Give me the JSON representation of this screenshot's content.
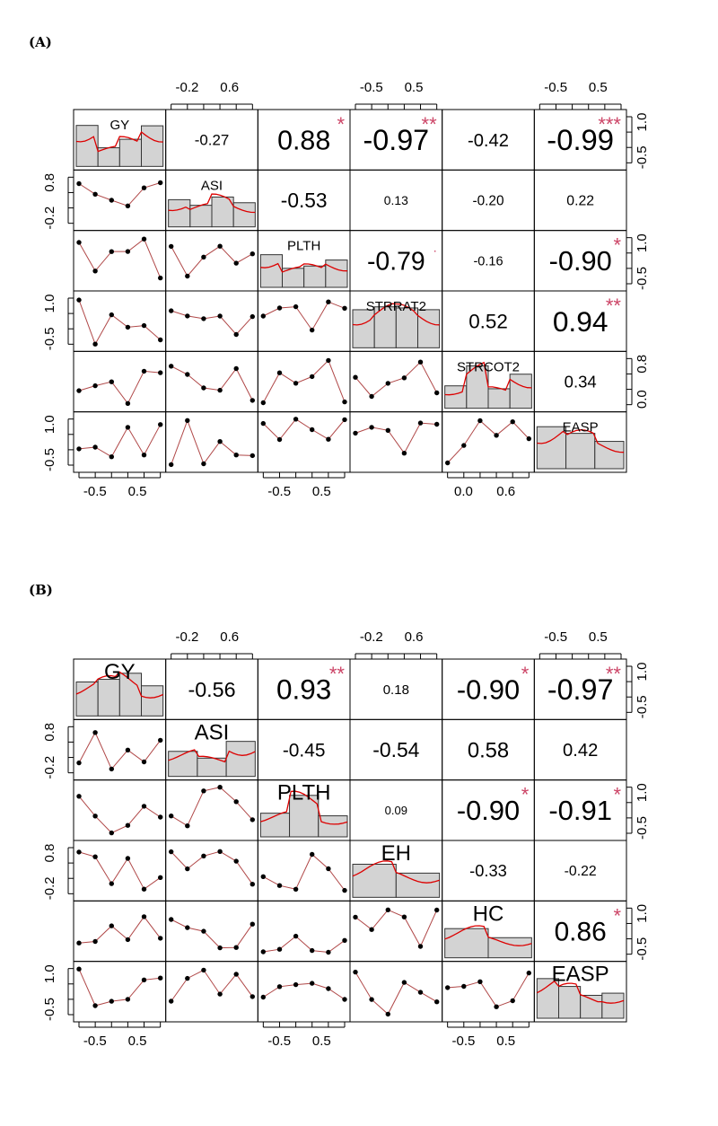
{
  "panels": {
    "a_label": "(A)",
    "b_label": "(B)"
  },
  "colors": {
    "star": "#cc4466",
    "density": "#dd0000",
    "smooth": "#b04848",
    "hist_fill": "#d3d3d3"
  },
  "chart_data": [
    {
      "type": "scatter-matrix",
      "panel": "(A)",
      "variables": [
        "GY",
        "ASI",
        "PLTH",
        "STRRAT2",
        "STRCOT2",
        "EASP"
      ],
      "correlations": [
        {
          "row": 1,
          "col": 2,
          "value": "-0.27",
          "stars": ""
        },
        {
          "row": 1,
          "col": 3,
          "value": "0.88",
          "stars": "*"
        },
        {
          "row": 1,
          "col": 4,
          "value": "-0.97",
          "stars": "**"
        },
        {
          "row": 1,
          "col": 5,
          "value": "-0.42",
          "stars": ""
        },
        {
          "row": 1,
          "col": 6,
          "value": "-0.99",
          "stars": "***"
        },
        {
          "row": 2,
          "col": 3,
          "value": "-0.53",
          "stars": ""
        },
        {
          "row": 2,
          "col": 4,
          "value": "0.13",
          "stars": ""
        },
        {
          "row": 2,
          "col": 5,
          "value": "-0.20",
          "stars": ""
        },
        {
          "row": 2,
          "col": 6,
          "value": "0.22",
          "stars": ""
        },
        {
          "row": 3,
          "col": 4,
          "value": "-0.79",
          "stars": "."
        },
        {
          "row": 3,
          "col": 5,
          "value": "-0.16",
          "stars": ""
        },
        {
          "row": 3,
          "col": 6,
          "value": "-0.90",
          "stars": "*"
        },
        {
          "row": 4,
          "col": 5,
          "value": "0.52",
          "stars": ""
        },
        {
          "row": 4,
          "col": 6,
          "value": "0.94",
          "stars": "**"
        },
        {
          "row": 5,
          "col": 6,
          "value": "0.34",
          "stars": ""
        }
      ],
      "top_axis_ticks": [
        {
          "col": 2,
          "labels": [
            "-0.2",
            "0.6"
          ]
        },
        {
          "col": 4,
          "labels": [
            "-0.5",
            "0.5"
          ]
        },
        {
          "col": 6,
          "labels": [
            "-0.5",
            "0.5"
          ]
        }
      ],
      "bottom_axis_ticks": [
        {
          "col": 1,
          "labels": [
            "-0.5",
            "0.5"
          ]
        },
        {
          "col": 3,
          "labels": [
            "-0.5",
            "0.5"
          ]
        },
        {
          "col": 5,
          "labels": [
            "0.0",
            "0.6"
          ]
        }
      ],
      "left_axis_ticks": [
        {
          "row": 2,
          "labels": [
            "-0.2",
            "0.8"
          ]
        },
        {
          "row": 4,
          "labels": [
            "-0.5",
            "1.0"
          ]
        },
        {
          "row": 6,
          "labels": [
            "-0.5",
            "1.0"
          ]
        }
      ],
      "right_axis_ticks": [
        {
          "row": 1,
          "labels": [
            "-0.5",
            "1.0"
          ]
        },
        {
          "row": 3,
          "labels": [
            "-0.5",
            "1.0"
          ]
        },
        {
          "row": 5,
          "labels": [
            "0.0",
            "0.8"
          ]
        }
      ]
    },
    {
      "type": "scatter-matrix",
      "panel": "(B)",
      "variables": [
        "GY",
        "ASI",
        "PLTH",
        "EH",
        "HC",
        "EASP"
      ],
      "correlations": [
        {
          "row": 1,
          "col": 2,
          "value": "-0.56",
          "stars": ""
        },
        {
          "row": 1,
          "col": 3,
          "value": "0.93",
          "stars": "**"
        },
        {
          "row": 1,
          "col": 4,
          "value": "0.18",
          "stars": ""
        },
        {
          "row": 1,
          "col": 5,
          "value": "-0.90",
          "stars": "*"
        },
        {
          "row": 1,
          "col": 6,
          "value": "-0.97",
          "stars": "**"
        },
        {
          "row": 2,
          "col": 3,
          "value": "-0.45",
          "stars": ""
        },
        {
          "row": 2,
          "col": 4,
          "value": "-0.54",
          "stars": ""
        },
        {
          "row": 2,
          "col": 5,
          "value": "0.58",
          "stars": ""
        },
        {
          "row": 2,
          "col": 6,
          "value": "0.42",
          "stars": ""
        },
        {
          "row": 3,
          "col": 4,
          "value": "0.09",
          "stars": ""
        },
        {
          "row": 3,
          "col": 5,
          "value": "-0.90",
          "stars": "*"
        },
        {
          "row": 3,
          "col": 6,
          "value": "-0.91",
          "stars": "*"
        },
        {
          "row": 4,
          "col": 5,
          "value": "-0.33",
          "stars": ""
        },
        {
          "row": 4,
          "col": 6,
          "value": "-0.22",
          "stars": ""
        },
        {
          "row": 5,
          "col": 6,
          "value": "0.86",
          "stars": "*"
        }
      ],
      "top_axis_ticks": [
        {
          "col": 2,
          "labels": [
            "-0.2",
            "0.6"
          ]
        },
        {
          "col": 4,
          "labels": [
            "-0.2",
            "0.6"
          ]
        },
        {
          "col": 6,
          "labels": [
            "-0.5",
            "0.5"
          ]
        }
      ],
      "bottom_axis_ticks": [
        {
          "col": 1,
          "labels": [
            "-0.5",
            "0.5"
          ]
        },
        {
          "col": 3,
          "labels": [
            "-0.5",
            "0.5"
          ]
        },
        {
          "col": 5,
          "labels": [
            "-0.5",
            "0.5"
          ]
        }
      ],
      "left_axis_ticks": [
        {
          "row": 2,
          "labels": [
            "-0.2",
            "0.8"
          ]
        },
        {
          "row": 4,
          "labels": [
            "-0.2",
            "0.8"
          ]
        },
        {
          "row": 6,
          "labels": [
            "-0.5",
            "1.0"
          ]
        }
      ],
      "right_axis_ticks": [
        {
          "row": 1,
          "labels": [
            "-0.5",
            "1.0"
          ]
        },
        {
          "row": 3,
          "labels": [
            "-0.5",
            "1.0"
          ]
        },
        {
          "row": 5,
          "labels": [
            "-0.5",
            "1.0"
          ]
        }
      ]
    }
  ]
}
